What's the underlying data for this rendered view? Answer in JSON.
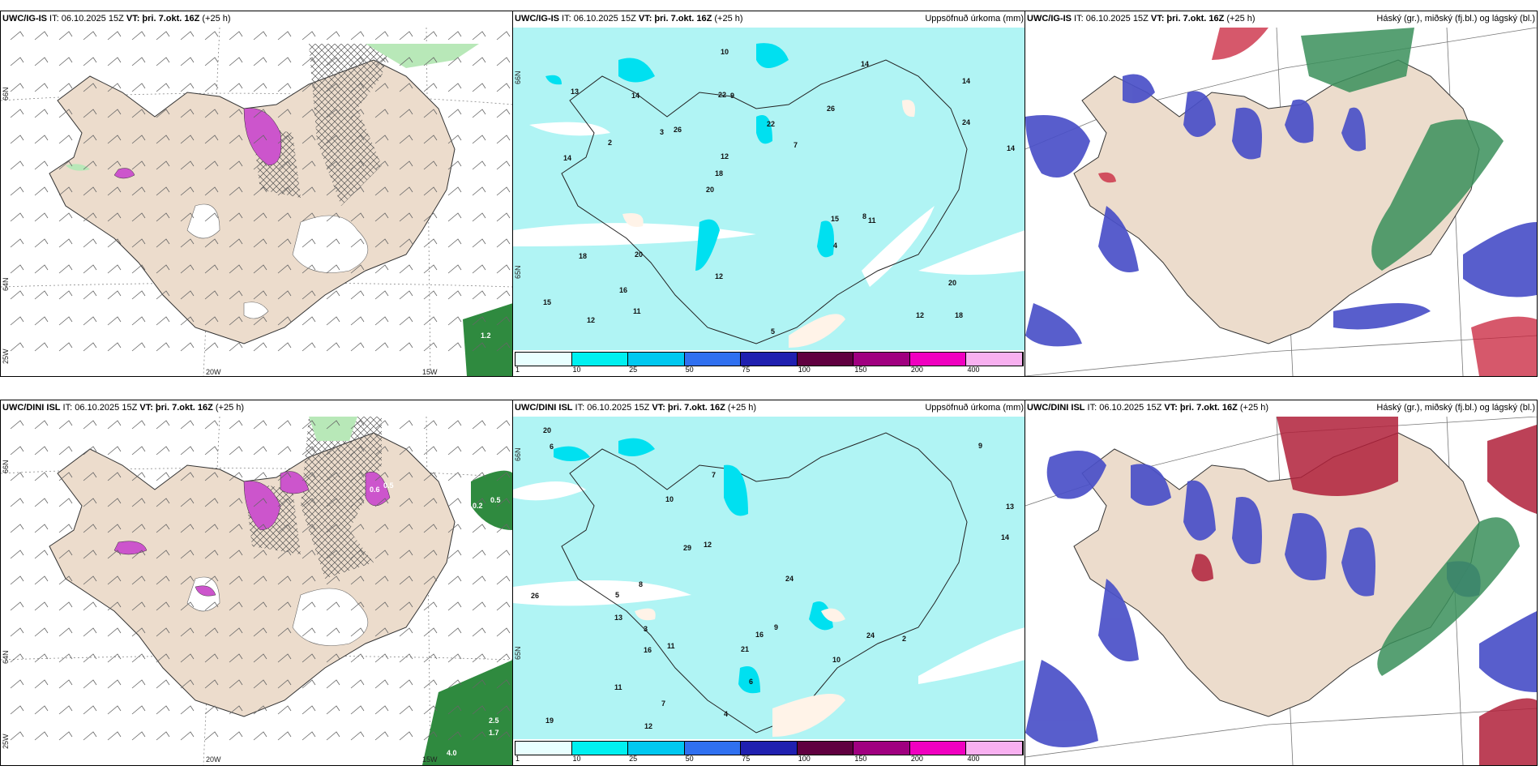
{
  "panels": [
    {
      "model": "UWC/IG-IS",
      "rest": " IT: 06.10.2025 15Z ",
      "vt_label": "VT:",
      "vt": " þri. 7.okt. 16Z",
      "lead": " (+25 h)",
      "right": ""
    },
    {
      "model": "UWC/IG-IS",
      "rest": " IT: 06.10.2025 15Z ",
      "vt_label": "VT:",
      "vt": " þri. 7.okt. 16Z",
      "lead": " (+25 h)",
      "right": "Uppsöfnuð úrkoma (mm)"
    },
    {
      "model": "UWC/IG-IS",
      "rest": " IT: 06.10.2025 15Z ",
      "vt_label": "VT:",
      "vt": " þri. 7.okt. 16Z",
      "lead": " (+25 h)",
      "right": "Háský (gr.), miðský (fj.bl.) og lágský (bl.)"
    },
    {
      "model": "UWC/DINI ISL",
      "rest": " IT: 06.10.2025 15Z ",
      "vt_label": "VT:",
      "vt": " þri. 7.okt. 16Z",
      "lead": " (+25 h)",
      "right": ""
    },
    {
      "model": "UWC/DINI ISL",
      "rest": " IT: 06.10.2025 15Z ",
      "vt_label": "VT:",
      "vt": " þri. 7.okt. 16Z",
      "lead": " (+25 h)",
      "right": "Uppsöfnuð úrkoma (mm)"
    },
    {
      "model": "UWC/DINI ISL",
      "rest": " IT: 06.10.2025 15Z ",
      "vt_label": "VT:",
      "vt": " þri. 7.okt. 16Z",
      "lead": " (+25 h)",
      "right": "Háský (gr.), miðský (fj.bl.) og lágský (bl.)"
    }
  ],
  "axes": {
    "lat_66": "66N",
    "lat_64": "64N",
    "lat_n65": "65N",
    "lon_20": "20W",
    "lon_15": "15W",
    "lon_25": "25W"
  },
  "colorbar": {
    "labels": [
      "1",
      "10",
      "25",
      "50",
      "75",
      "100",
      "150",
      "200",
      "400"
    ],
    "colors": [
      "#e8ffff",
      "#00f0f0",
      "#00c8f0",
      "#3070f0",
      "#2020b0",
      "#600040",
      "#a00080",
      "#f000c0",
      "#f8b0f0"
    ]
  },
  "wind_values_top": [
    "1.2"
  ],
  "wind_values_bottom": [
    "0.5",
    "0.2",
    "0.5",
    "0.6",
    "2.5",
    "1.7",
    "4.0"
  ],
  "precip_top": [
    "18",
    "14",
    "14",
    "20",
    "26",
    "12",
    "22",
    "22",
    "18",
    "26",
    "15",
    "16",
    "9",
    "7",
    "11",
    "13",
    "10",
    "14",
    "15",
    "24",
    "18",
    "12",
    "12",
    "14",
    "14",
    "20",
    "12",
    "20",
    "8",
    "5",
    "3",
    "2",
    "4",
    "11"
  ],
  "precip_bottom": [
    "6",
    "20",
    "26",
    "9",
    "13",
    "10",
    "7",
    "11",
    "19",
    "24",
    "16",
    "24",
    "12",
    "13",
    "16",
    "29",
    "21",
    "11",
    "10",
    "12",
    "14",
    "6",
    "7",
    "8",
    "5",
    "9",
    "3",
    "2",
    "4"
  ],
  "colors": {
    "land": "#ecdccc",
    "sea_precip": "#b0f4f4",
    "ice": "#fff3e8",
    "high": "#c8203a",
    "mid": "#3a8f5a",
    "low": "#4a50c8"
  }
}
